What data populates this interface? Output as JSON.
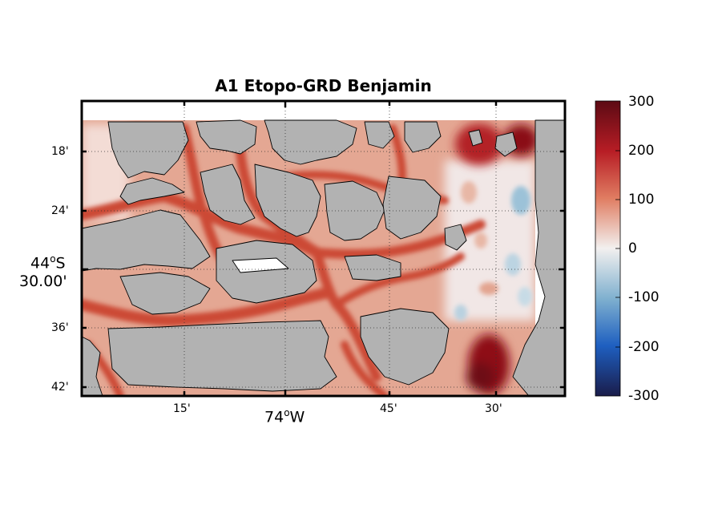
{
  "title": "A1 Etopo-GRD Benjamin",
  "map": {
    "region": "Chilean fjords near 44°S 74°W",
    "land_color": "#b2b2b2",
    "coastline_color": "#000000",
    "grid": "dotted",
    "x_ticks": [
      {
        "label": "15'"
      },
      {
        "label": "45'"
      },
      {
        "label": "30'"
      }
    ],
    "x_major": {
      "deg": "74",
      "sup": "o",
      "hem": "W"
    },
    "y_ticks": [
      {
        "label": "18'"
      },
      {
        "label": "24'"
      },
      {
        "label": "36'"
      },
      {
        "label": "42'"
      }
    ],
    "y_major": {
      "deg": "44",
      "sup": "o",
      "hem": "S",
      "min": "30.00'"
    }
  },
  "colorbar": {
    "colormap": "diverging blue-white-red",
    "range": [
      -300,
      300
    ],
    "ticks": [
      "300",
      "200",
      "100",
      "0",
      "-100",
      "-200",
      "-300"
    ],
    "colors": [
      "#6a0512",
      "#b71d25",
      "#e06e52",
      "#f2f2f2",
      "#6ea5c6",
      "#1d5bbf",
      "#1a1c4a"
    ]
  }
}
